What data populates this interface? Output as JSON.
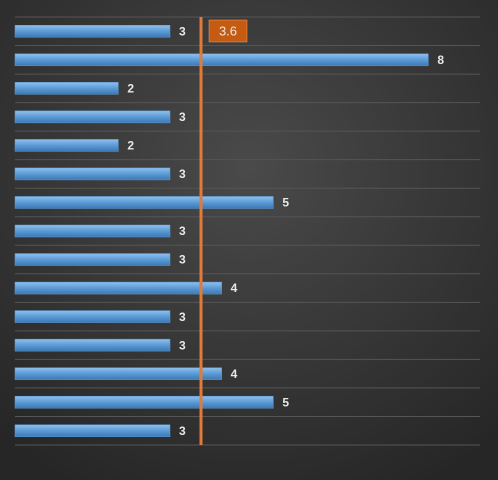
{
  "chart_data": {
    "type": "bar",
    "orientation": "horizontal",
    "categories": [
      null,
      null,
      null,
      null,
      null,
      null,
      null,
      null,
      null,
      null,
      null,
      null,
      null,
      null,
      null
    ],
    "values": [
      3,
      8,
      2,
      3,
      2,
      3,
      5,
      3,
      3,
      4,
      3,
      3,
      4,
      5,
      3
    ],
    "color": "#5b9bd5",
    "xlim": [
      0,
      9
    ],
    "grid": true,
    "reference_line": {
      "value": 3.6,
      "color": "#e07b39"
    }
  }
}
